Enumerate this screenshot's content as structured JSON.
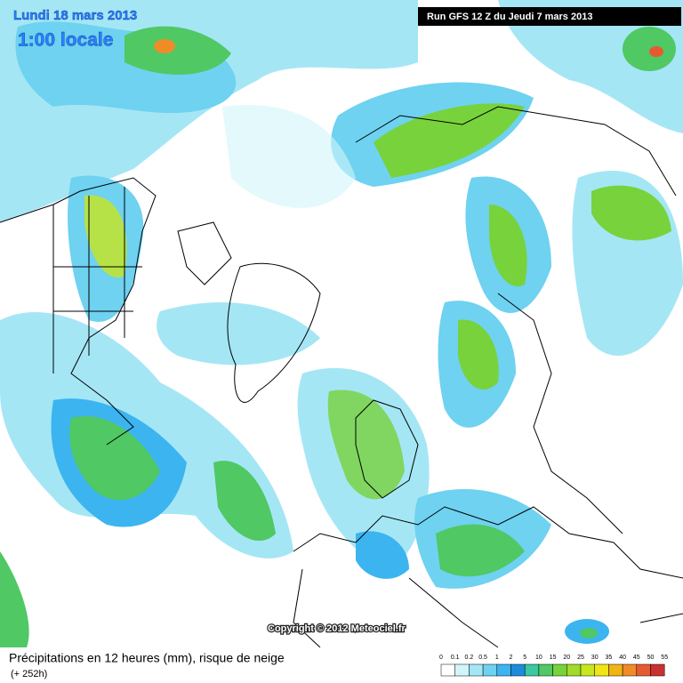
{
  "header": {
    "date": "Lundi 18 mars 2013",
    "time": "1:00 locale",
    "run": "Run GFS 12 Z du Jeudi 7 mars 2013"
  },
  "copyright": "Copyright © 2012 Meteociel.fr",
  "footer": {
    "title": "Précipitations en 12 heures (mm), risque de neige",
    "lead": "(+ 252h)"
  },
  "legend": {
    "labels": [
      0,
      0.1,
      0.2,
      0.5,
      1,
      2,
      5,
      10,
      15,
      20,
      25,
      30,
      35,
      40,
      45,
      50,
      55
    ],
    "colors": [
      "#ffffff",
      "#d2f5fa",
      "#a5e6f5",
      "#6ed2f0",
      "#3cb4f0",
      "#1e8cdc",
      "#3cc8a0",
      "#50c864",
      "#78d23c",
      "#a0dc28",
      "#c8e61e",
      "#f0e614",
      "#f0b414",
      "#f08c28",
      "#e65a32",
      "#c83232"
    ]
  }
}
